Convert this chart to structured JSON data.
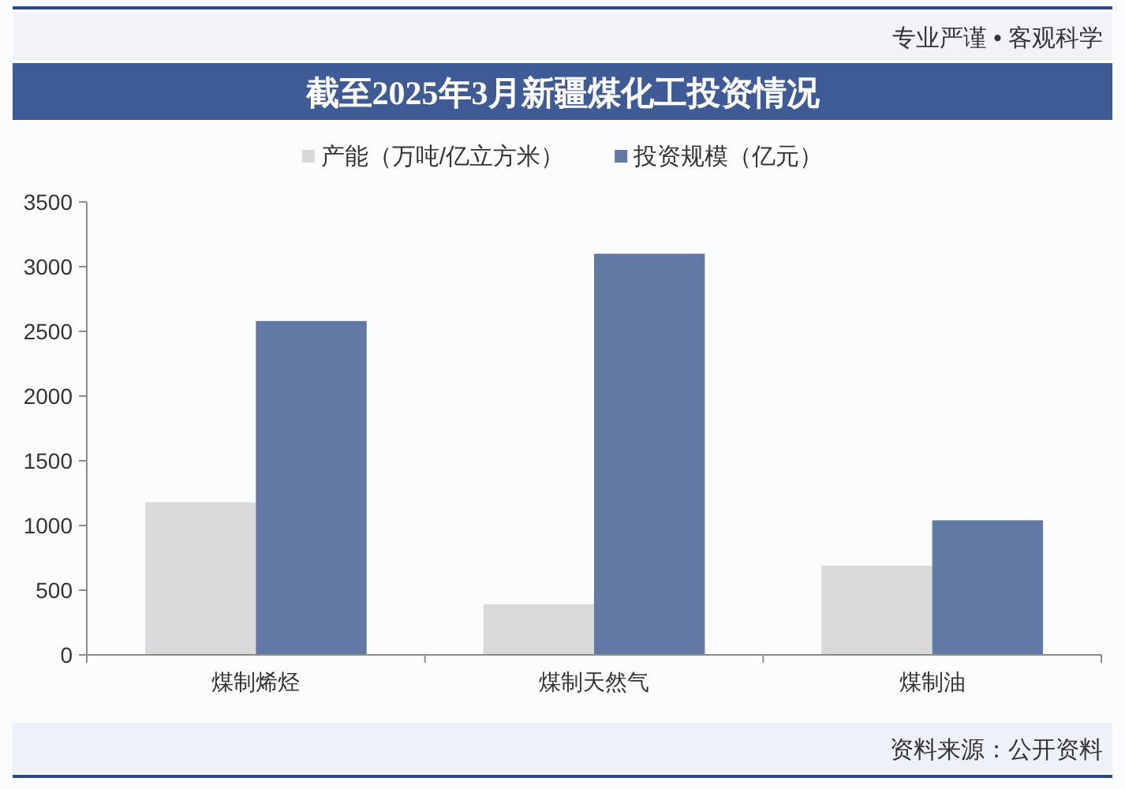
{
  "chart_data": {
    "type": "bar",
    "title": "截至2025年3月新疆煤化工投资情况",
    "categories": [
      "煤制烯烃",
      "煤制天然气",
      "煤制油"
    ],
    "series": [
      {
        "name": "产能（万吨/亿立方米）",
        "color": "#d9d9d9",
        "values": [
          1180,
          390,
          690
        ]
      },
      {
        "name": "投资规模（亿元）",
        "color": "#6279a6",
        "values": [
          2580,
          3100,
          1040
        ]
      }
    ],
    "ylim": [
      0,
      3500
    ],
    "yticks": [
      0,
      500,
      1000,
      1500,
      2000,
      2500,
      3000,
      3500
    ],
    "grid": false,
    "legend": "top",
    "annotations": [
      "专业严谨 • 客观科学",
      "资料来源：公开资料"
    ]
  }
}
